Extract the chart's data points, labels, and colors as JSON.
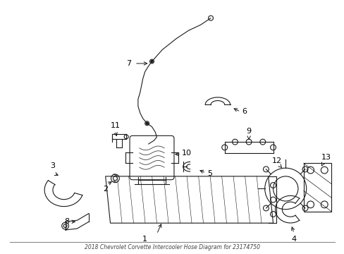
{
  "title": "2018 Chevrolet Corvette Intercooler Hose Diagram for 23174750",
  "bg_color": "#ffffff",
  "line_color": "#1a1a1a",
  "label_color": "#000000",
  "fig_width": 4.89,
  "fig_height": 3.6,
  "dpi": 100
}
